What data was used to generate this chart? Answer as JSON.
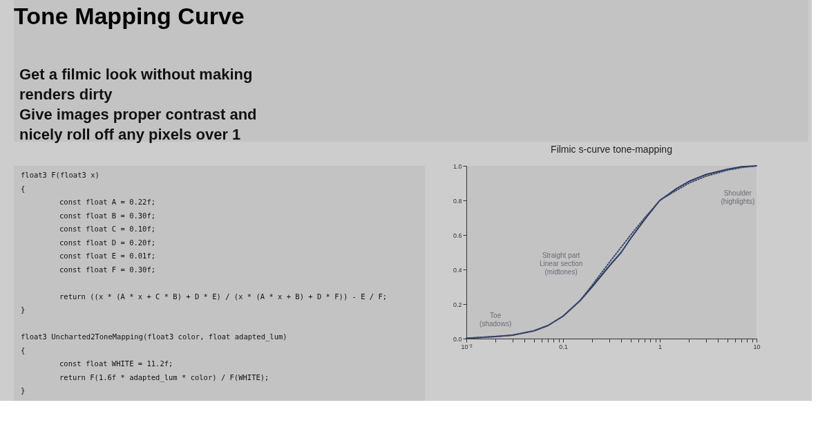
{
  "chart_data": {
    "type": "line",
    "title": "Filmic s-curve tone-mapping",
    "series": [
      {
        "color": "#2e3a5c",
        "line_style": "solid",
        "x": [
          0.01,
          0.02,
          0.03,
          0.05,
          0.07,
          0.1,
          0.15,
          0.2,
          0.3,
          0.4,
          0.5,
          0.7,
          1,
          1.5,
          2,
          3,
          5,
          7,
          10
        ],
        "values": [
          0.002,
          0.012,
          0.02,
          0.045,
          0.076,
          0.13,
          0.22,
          0.3,
          0.42,
          0.5,
          0.58,
          0.69,
          0.8,
          0.87,
          0.91,
          0.95,
          0.98,
          0.995,
          1.0
        ]
      },
      {
        "color": "#3a4670",
        "line_style": "dotted",
        "x": [
          0.01,
          0.02,
          0.03,
          0.05,
          0.07,
          0.1,
          0.15,
          0.2,
          0.3,
          0.4,
          0.5,
          0.7,
          1,
          1.5,
          2,
          3,
          5,
          7,
          10
        ],
        "values": [
          0.002,
          0.012,
          0.02,
          0.045,
          0.076,
          0.13,
          0.22,
          0.31,
          0.44,
          0.53,
          0.6,
          0.7,
          0.8,
          0.86,
          0.9,
          0.94,
          0.975,
          0.99,
          1.0
        ]
      }
    ],
    "log": "x",
    "xlim": [
      0.01,
      10
    ],
    "ylim": [
      0,
      1
    ],
    "xticks": [
      {
        "value": 0.01,
        "label": "10⁻²"
      },
      {
        "value": 0.02,
        "label": null
      },
      {
        "value": 0.03,
        "label": null
      },
      {
        "value": 0.04,
        "label": null
      },
      {
        "value": 0.05,
        "label": null
      },
      {
        "value": 0.06,
        "label": null
      },
      {
        "value": 0.07,
        "label": null
      },
      {
        "value": 0.08,
        "label": null
      },
      {
        "value": 0.09,
        "label": null
      },
      0.1,
      {
        "value": 0.2,
        "label": null
      },
      {
        "value": 0.3,
        "label": null
      },
      {
        "value": 0.4,
        "label": null
      },
      {
        "value": 0.5,
        "label": null
      },
      {
        "value": 0.6,
        "label": null
      },
      {
        "value": 0.7,
        "label": null
      },
      {
        "value": 0.8,
        "label": null
      },
      {
        "value": 0.9,
        "label": null
      },
      1,
      {
        "value": 2,
        "label": null
      },
      {
        "value": 3,
        "label": null
      },
      {
        "value": 4,
        "label": null
      },
      {
        "value": 5,
        "label": null
      },
      {
        "value": 6,
        "label": null
      },
      {
        "value": 7,
        "label": null
      },
      {
        "value": 8,
        "label": null
      },
      {
        "value": 9,
        "label": null
      },
      10
    ],
    "yticks": [
      {
        "value": 0,
        "label": "0.0"
      },
      0.2,
      0.4,
      0.6,
      0.8,
      {
        "value": 1,
        "label": "1.0"
      }
    ],
    "grid": false,
    "marker": "none",
    "annotations": [
      "Tone Mapping Curve",
      "Get a filmic look without making\nrenders dirty\nGive images proper contrast and\nnicely roll off any pixels over 1",
      "float3 F(float3 x)\n{\n        const float A = 0.22f;\n        const float B = 0.30f;\n        const float C = 0.10f;\n        const float D = 0.20f;\n        const float E = 0.01f;\n        const float F = 0.30f;\n\n        return ((x * (A * x + C * B) + D * E) / (x * (A * x + B) + D * F)) - E / F;\n}\n\nfloat3 Uncharted2ToneMapping(float3 color, float adapted_lum)\n{\n        const float WHITE = 11.2f;\n        return F(1.6f * adapted_lum * color) / F(WHITE);\n}",
      "Toe\n(shadows)",
      "Straight part\nLinear section\n(midtones)",
      "Shoulder\n(highlights)"
    ]
  }
}
